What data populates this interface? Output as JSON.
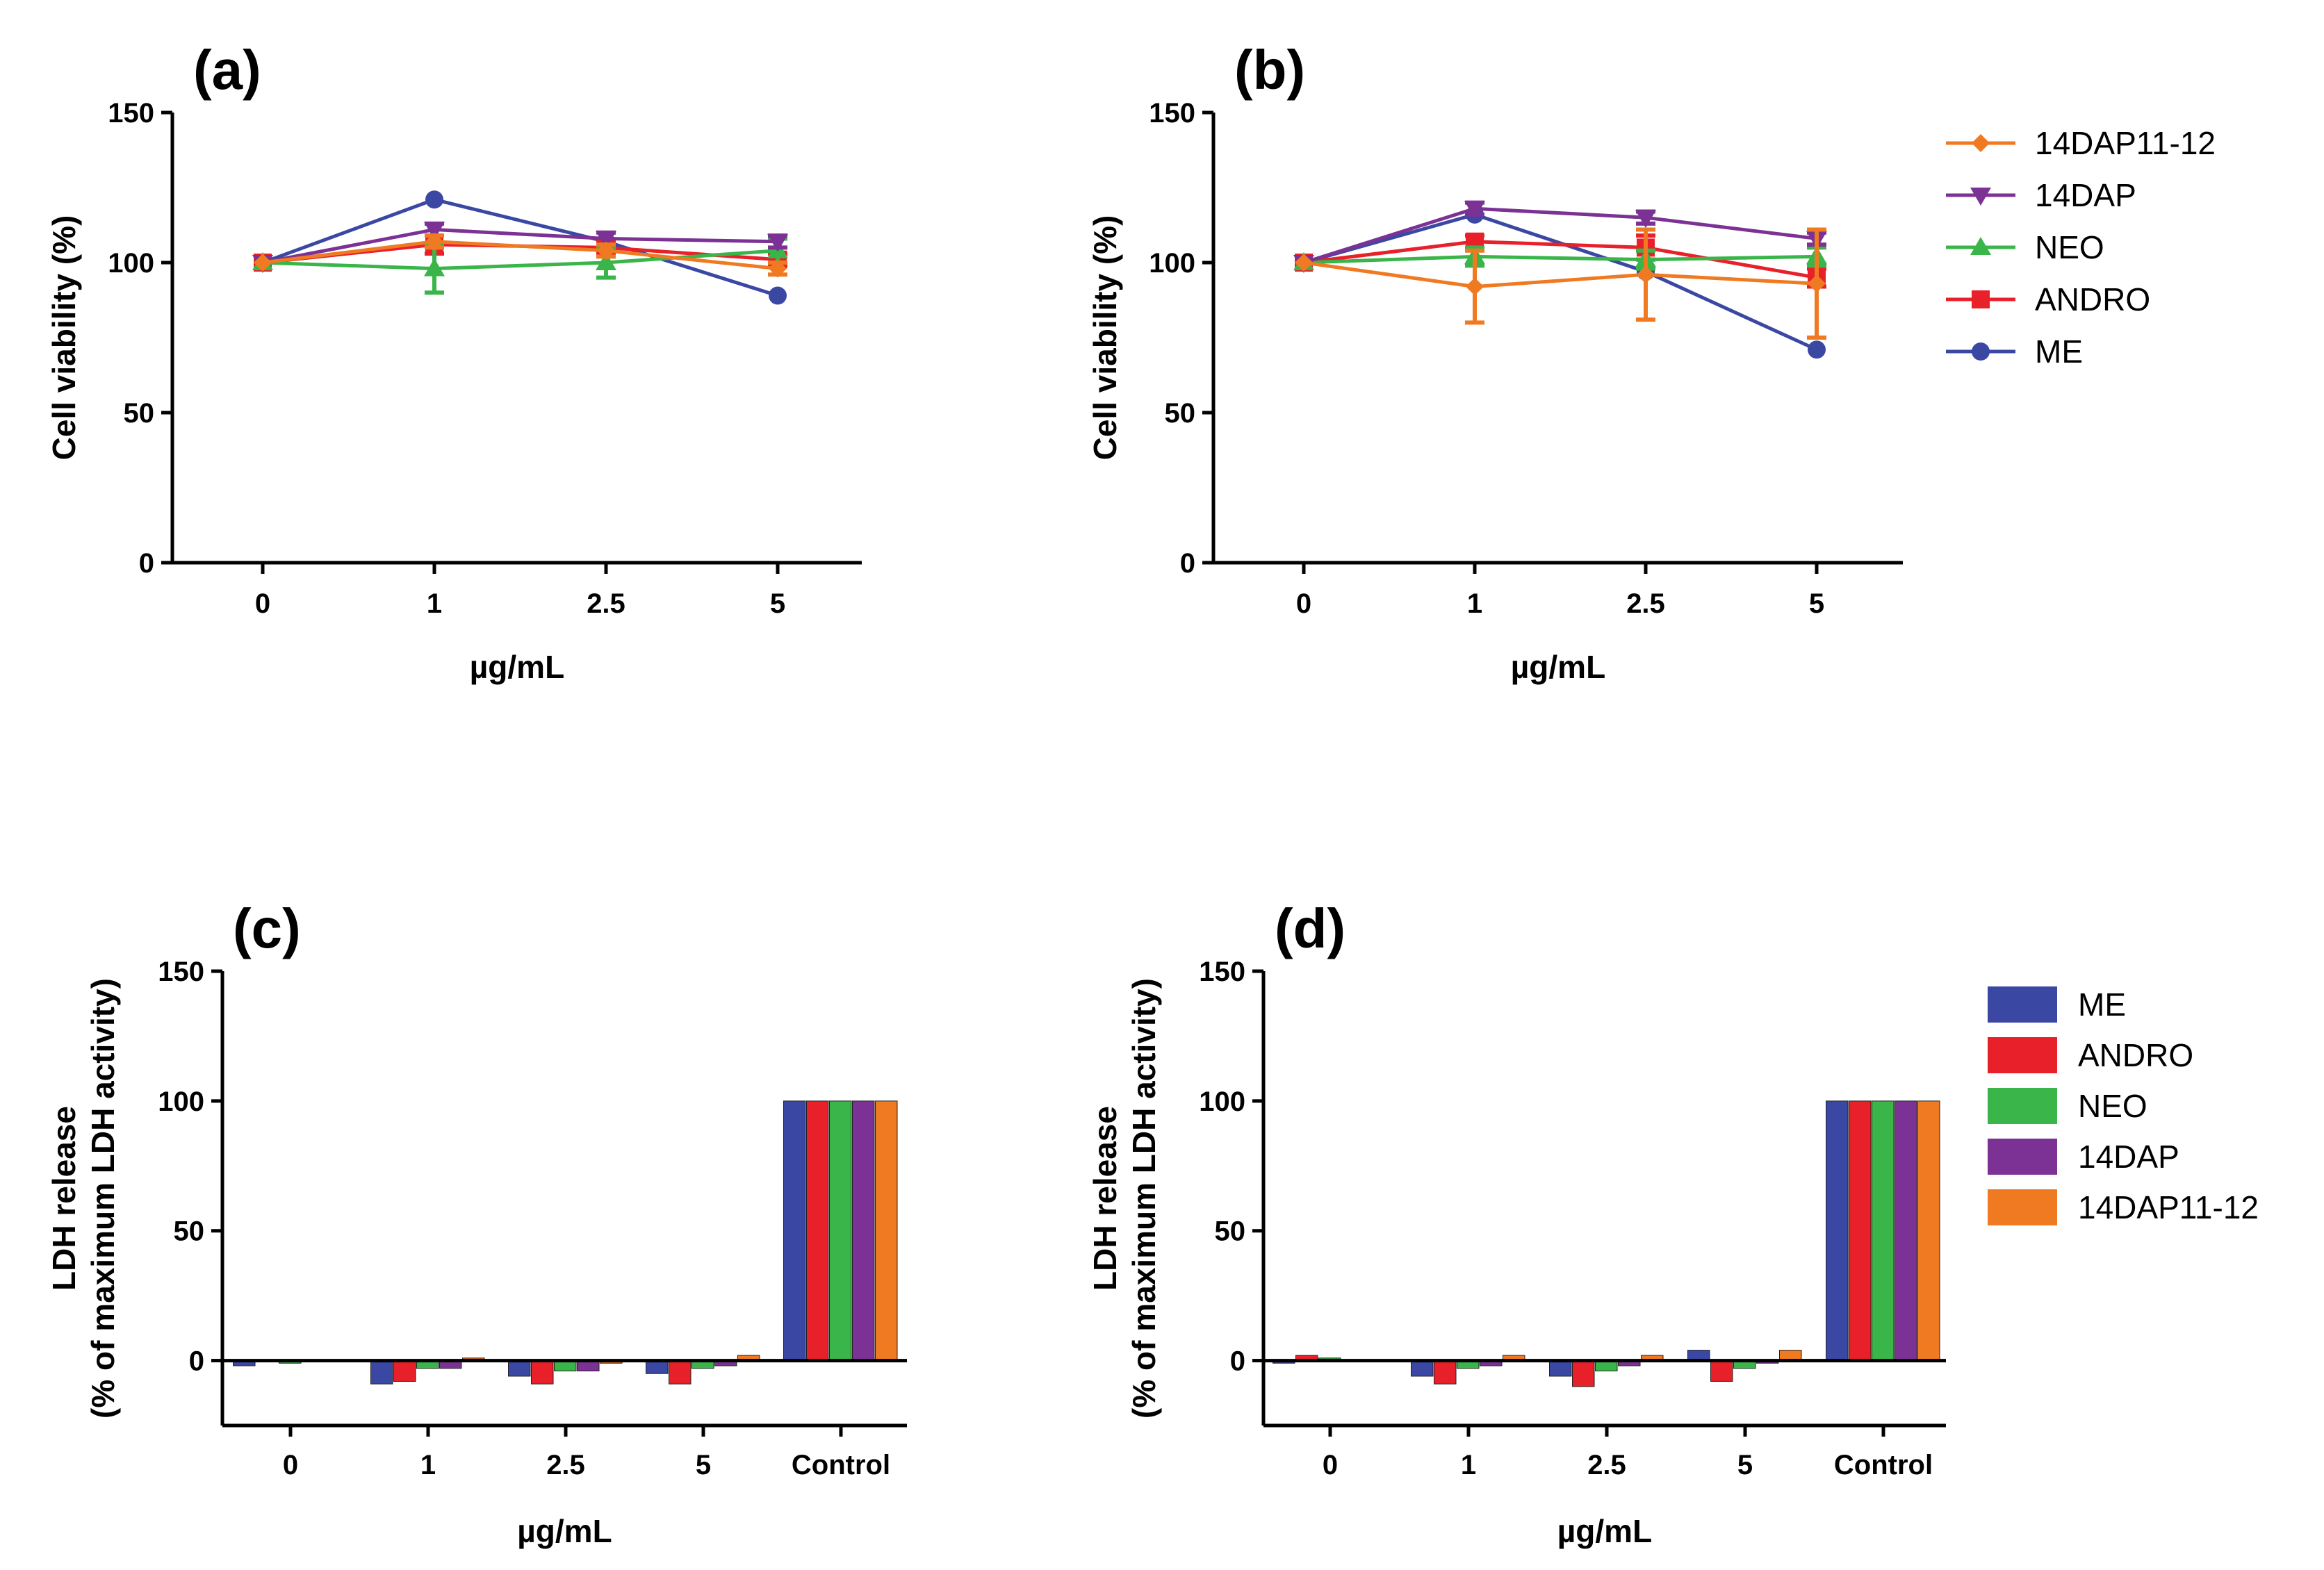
{
  "colors": {
    "ME": "#3a48a4",
    "ANDRO": "#e8202a",
    "NEO": "#3ab54a",
    "14DAP": "#7b3294",
    "14DAP11-12": "#f07a22"
  },
  "legend_line": {
    "entries": [
      {
        "name": "14DAP11-12",
        "marker": "diamond"
      },
      {
        "name": "14DAP",
        "marker": "triangle-down"
      },
      {
        "name": "NEO",
        "marker": "triangle-up"
      },
      {
        "name": "ANDRO",
        "marker": "square"
      },
      {
        "name": "ME",
        "marker": "circle"
      }
    ]
  },
  "legend_bar": {
    "entries": [
      "ME",
      "ANDRO",
      "NEO",
      "14DAP",
      "14DAP11-12"
    ]
  },
  "chart_data": [
    {
      "panel": "(a)",
      "type": "line",
      "xlabel": "µg/mL",
      "ylabel": "Cell viability (%)",
      "categories": [
        "0",
        "1",
        "2.5",
        "5"
      ],
      "ylim": [
        0,
        150
      ],
      "yticks": [
        0,
        50,
        100,
        150
      ],
      "series": [
        {
          "name": "ME",
          "marker": "circle",
          "values": [
            100,
            121,
            107,
            89
          ],
          "errors": [
            0,
            0,
            0,
            0
          ]
        },
        {
          "name": "ANDRO",
          "marker": "square",
          "values": [
            100,
            106,
            105,
            101
          ],
          "errors": [
            0,
            3,
            2,
            2
          ]
        },
        {
          "name": "NEO",
          "marker": "triangle-up",
          "values": [
            100,
            98,
            100,
            104
          ],
          "errors": [
            0,
            8,
            5,
            4
          ]
        },
        {
          "name": "14DAP",
          "marker": "triangle-down",
          "values": [
            100,
            111,
            108,
            107
          ],
          "errors": [
            0,
            2,
            2,
            2
          ]
        },
        {
          "name": "14DAP11-12",
          "marker": "diamond",
          "values": [
            100,
            107,
            104,
            98
          ],
          "errors": [
            0,
            2,
            2,
            2
          ]
        }
      ]
    },
    {
      "panel": "(b)",
      "type": "line",
      "xlabel": "µg/mL",
      "ylabel": "Cell viability (%)",
      "categories": [
        "0",
        "1",
        "2.5",
        "5"
      ],
      "ylim": [
        0,
        150
      ],
      "yticks": [
        0,
        50,
        100,
        150
      ],
      "series": [
        {
          "name": "ME",
          "marker": "circle",
          "values": [
            100,
            116,
            97,
            71
          ],
          "errors": [
            0,
            0,
            0,
            0
          ]
        },
        {
          "name": "ANDRO",
          "marker": "square",
          "values": [
            100,
            107,
            105,
            95
          ],
          "errors": [
            0,
            2,
            4,
            3
          ]
        },
        {
          "name": "NEO",
          "marker": "triangle-up",
          "values": [
            100,
            102,
            101,
            102
          ],
          "errors": [
            0,
            3,
            3,
            3
          ]
        },
        {
          "name": "14DAP",
          "marker": "triangle-down",
          "values": [
            100,
            118,
            115,
            108
          ],
          "errors": [
            0,
            2,
            2,
            2
          ]
        },
        {
          "name": "14DAP11-12",
          "marker": "diamond",
          "values": [
            100,
            92,
            96,
            93
          ],
          "errors": [
            0,
            12,
            15,
            18
          ]
        }
      ]
    },
    {
      "panel": "(c)",
      "type": "bar",
      "xlabel": "µg/mL",
      "ylabel_lines": [
        "LDH release",
        "(% of maximum LDH activity)"
      ],
      "categories": [
        "0",
        "1",
        "2.5",
        "5",
        "Control"
      ],
      "ylim": [
        -25,
        150
      ],
      "yticks": [
        0,
        50,
        100,
        150
      ],
      "series": [
        {
          "name": "ME",
          "values": [
            -2,
            -9,
            -6,
            -5,
            100
          ]
        },
        {
          "name": "ANDRO",
          "values": [
            -0.5,
            -8,
            -9,
            -9,
            100
          ]
        },
        {
          "name": "NEO",
          "values": [
            -1,
            -3,
            -4,
            -3,
            100
          ]
        },
        {
          "name": "14DAP",
          "values": [
            -0.5,
            -3,
            -4,
            -2,
            100
          ]
        },
        {
          "name": "14DAP11-12",
          "values": [
            0,
            1,
            -1,
            2,
            100
          ]
        }
      ]
    },
    {
      "panel": "(d)",
      "type": "bar",
      "xlabel": "µg/mL",
      "ylabel_lines": [
        "LDH release",
        "(% of maximum LDH activity)"
      ],
      "categories": [
        "0",
        "1",
        "2.5",
        "5",
        "Control"
      ],
      "ylim": [
        -25,
        150
      ],
      "yticks": [
        0,
        50,
        100,
        150
      ],
      "series": [
        {
          "name": "ME",
          "values": [
            -1,
            -6,
            -6,
            4,
            100
          ]
        },
        {
          "name": "ANDRO",
          "values": [
            2,
            -9,
            -10,
            -8,
            100
          ]
        },
        {
          "name": "NEO",
          "values": [
            1,
            -3,
            -4,
            -3,
            100
          ]
        },
        {
          "name": "14DAP",
          "values": [
            0,
            -2,
            -2,
            -1,
            100
          ]
        },
        {
          "name": "14DAP11-12",
          "values": [
            0,
            2,
            2,
            4,
            100
          ]
        }
      ]
    }
  ]
}
